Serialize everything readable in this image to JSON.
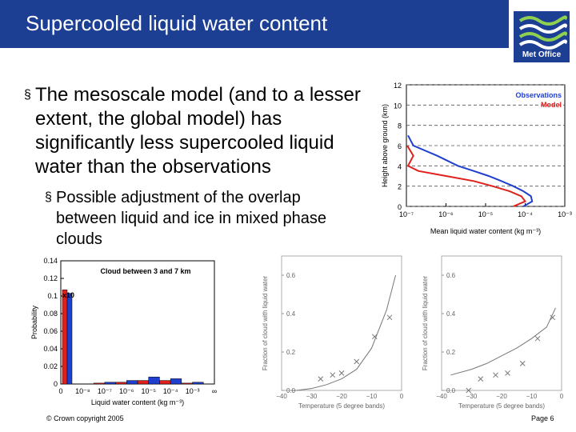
{
  "slide": {
    "title": "Supercooled liquid water content",
    "bullet1": "The mesoscale model (and to a lesser extent, the global model) has significantly less supercooled liquid water than the observations",
    "bullet2": "Possible adjustment of the overlap between liquid and ice in mixed phase clouds",
    "footer_left": "© Crown copyright 2005",
    "footer_right": "Page 6",
    "logo_text": "Met Office",
    "colors": {
      "header": "#1c3f94",
      "observations": "#1f3fcf",
      "model": "#e0201c"
    }
  },
  "chart_data": [
    {
      "type": "line",
      "xlabel": "Mean liquid water content (kg m⁻³)",
      "ylabel": "Height above ground (km)",
      "xscale": "log",
      "xlim": [
        1e-07,
        0.001
      ],
      "ylim": [
        0,
        12
      ],
      "xticks": [
        "10⁻⁷",
        "10⁻⁶",
        "10⁻⁵",
        "10⁻⁴",
        "10⁻³"
      ],
      "yticks": [
        "0",
        "2",
        "4",
        "6",
        "8",
        "10",
        "12"
      ],
      "legend_position": "top-right",
      "series": [
        {
          "name": "Observations",
          "color": "#1f3fcf",
          "x": [
            9e-05,
            0.00015,
            0.00014,
            9e-05,
            5e-05,
            2.5e-05,
            1.2e-05,
            5e-06,
            2e-06,
            6e-07,
            1.5e-07,
            1.1e-07
          ],
          "y": [
            0,
            0.5,
            1,
            1.5,
            2,
            2.5,
            3,
            3.5,
            4,
            5,
            6,
            7
          ]
        },
        {
          "name": "Model",
          "color": "#e0201c",
          "x": [
            5e-05,
            0.0001,
            8e-05,
            4e-05,
            1.5e-05,
            5e-06,
            1e-06,
            2e-07,
            1.1e-07,
            1.5e-07,
            1.05e-07
          ],
          "y": [
            0,
            0.5,
            1,
            1.5,
            2,
            2.5,
            3,
            3.5,
            4,
            5,
            6
          ]
        }
      ]
    },
    {
      "type": "bar",
      "title": "Cloud between 3 and 7 km",
      "xlabel": "Liquid water content (kg m⁻³)",
      "ylabel": "Probability",
      "ylim": [
        0,
        0.14
      ],
      "yticks": [
        "0",
        "0.02",
        "0.04",
        "0.06",
        "0.08",
        "0.1",
        "0.12",
        "0.14"
      ],
      "xtick_labels": [
        "0",
        "10⁻⁸",
        "10⁻⁷",
        "10⁻⁶",
        "10⁻⁵",
        "10⁻⁴",
        "10⁻³",
        "∞"
      ],
      "annotation": "x10",
      "series": [
        {
          "name": "",
          "color": "#e0201c",
          "values": [
            0.107,
            0.0,
            0.001,
            0.002,
            0.004,
            0.004,
            0.001,
            0.0
          ]
        },
        {
          "name": "",
          "color": "#1f3fcf",
          "values": [
            0.103,
            0.0,
            0.002,
            0.004,
            0.008,
            0.006,
            0.002,
            0.0
          ]
        }
      ],
      "bin_labels": [
        "0",
        "10⁻⁸",
        "10⁻⁷",
        "10⁻⁶",
        "10⁻⁵",
        "10⁻⁴",
        "10⁻³",
        "∞"
      ]
    },
    {
      "type": "scatter",
      "xlabel": "Temperature (5 degree bands)",
      "ylabel": "Fraction of cloud with liquid water",
      "xlim": [
        -40,
        0
      ],
      "ylim": [
        0,
        0.7
      ],
      "xticks": [
        "−40",
        "−30",
        "−20",
        "−10",
        "0"
      ],
      "yticks": [
        "0.0",
        "0.2",
        "0.4",
        "0.6"
      ],
      "line": {
        "x": [
          -37,
          -35,
          -30,
          -25,
          -20,
          -15,
          -10,
          -5,
          -2
        ],
        "y": [
          0,
          0,
          0.01,
          0.03,
          0.06,
          0.11,
          0.22,
          0.42,
          0.6
        ]
      },
      "points": {
        "x": [
          -27,
          -23,
          -20,
          -15,
          -9,
          -4
        ],
        "y": [
          0.06,
          0.08,
          0.09,
          0.15,
          0.28,
          0.38
        ]
      }
    },
    {
      "type": "scatter",
      "xlabel": "Temperature (5 degree bands)",
      "ylabel": "Fraction of cloud with liquid water",
      "xlim": [
        -40,
        0
      ],
      "ylim": [
        0,
        0.7
      ],
      "xticks": [
        "−40",
        "−30",
        "−20",
        "−10",
        "0"
      ],
      "yticks": [
        "0.0",
        "0.2",
        "0.4",
        "0.6"
      ],
      "line": {
        "x": [
          -37,
          -30,
          -25,
          -20,
          -15,
          -10,
          -5,
          -2
        ],
        "y": [
          0.08,
          0.11,
          0.14,
          0.18,
          0.22,
          0.27,
          0.33,
          0.43
        ]
      },
      "points": {
        "x": [
          -31,
          -27,
          -22,
          -18,
          -13,
          -8,
          -3
        ],
        "y": [
          0.0,
          0.06,
          0.08,
          0.09,
          0.14,
          0.27,
          0.38
        ]
      }
    }
  ]
}
